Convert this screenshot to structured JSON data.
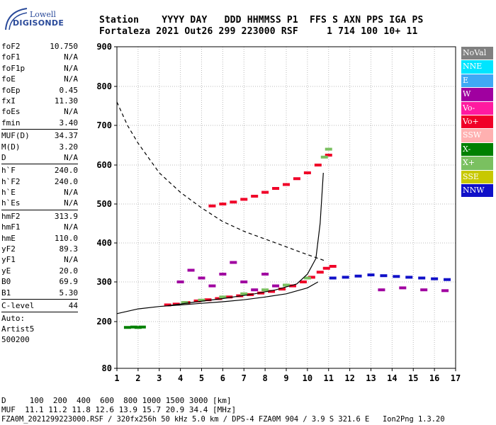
{
  "logo": {
    "line1": "Lowell",
    "line2": "DIGISONDE"
  },
  "header": {
    "row1": "Station    YYYY DAY   DDD HHMMSS P1  FFS S AXN PPS IGA PS",
    "row2": "Fortaleza 2021 Out26 299 223000 RSF     1 714 100 10+ 11"
  },
  "params": [
    [
      {
        "k": "foF2",
        "v": "10.750"
      },
      {
        "k": "foF1",
        "v": "N/A"
      },
      {
        "k": "foF1p",
        "v": "N/A"
      },
      {
        "k": "foE",
        "v": "N/A"
      },
      {
        "k": "foEp",
        "v": "0.45"
      },
      {
        "k": "fxI",
        "v": "11.30"
      },
      {
        "k": "foEs",
        "v": "N/A"
      },
      {
        "k": "fmin",
        "v": "3.40"
      }
    ],
    [
      {
        "k": "MUF(D)",
        "v": "34.37"
      },
      {
        "k": "M(D)",
        "v": "3.20"
      },
      {
        "k": "D",
        "v": "N/A"
      }
    ],
    [
      {
        "k": "h`F",
        "v": "240.0"
      },
      {
        "k": "h`F2",
        "v": "240.0"
      },
      {
        "k": "h`E",
        "v": "N/A"
      },
      {
        "k": "h`Es",
        "v": "N/A"
      }
    ],
    [
      {
        "k": "hmF2",
        "v": "313.9"
      },
      {
        "k": "hmF1",
        "v": "N/A"
      },
      {
        "k": "hmE",
        "v": "110.0"
      },
      {
        "k": "yF2",
        "v": "89.3"
      },
      {
        "k": "yF1",
        "v": "N/A"
      },
      {
        "k": "yE",
        "v": "20.0"
      },
      {
        "k": "B0",
        "v": "69.9"
      },
      {
        "k": "B1",
        "v": "5.30"
      }
    ],
    [
      {
        "k": "C-level",
        "v": "44"
      }
    ]
  ],
  "auto": [
    "Auto:",
    "Artist5",
    "500200"
  ],
  "legend": [
    {
      "label": "NoVal",
      "color": "#808080"
    },
    {
      "label": "NNE",
      "color": "#00e5ff"
    },
    {
      "label": "E",
      "color": "#3fa9f5"
    },
    {
      "label": "W",
      "color": "#a000a0"
    },
    {
      "label": "Vo-",
      "color": "#ff1aa0"
    },
    {
      "label": "Vo+",
      "color": "#f00028"
    },
    {
      "label": "SSW",
      "color": "#ffb0b0"
    },
    {
      "label": "X-",
      "color": "#008000"
    },
    {
      "label": "X+",
      "color": "#7ac060"
    },
    {
      "label": "SSE",
      "color": "#c8c800"
    },
    {
      "label": "NNW",
      "color": "#1010c8"
    }
  ],
  "bottom": {
    "line1": "D     100  200  400  600  800 1000 1500 3000 [km]",
    "line2": "MUF  11.1 11.2 11.8 12.6 13.9 15.7 20.9 34.4 [MHz]",
    "line3": "FZA0M_2021299223000.RSF / 320fx256h 50 kHz 5.0 km / DPS-4 FZA0M 904 / 3.9 S 321.6 E   Ion2Png 1.3.20"
  },
  "chart_data": {
    "type": "scatter",
    "title": "",
    "xlabel": "",
    "ylabel": "",
    "xlim": [
      1,
      17
    ],
    "ylim": [
      80,
      900
    ],
    "xticks": [
      1,
      2,
      3,
      4,
      5,
      6,
      7,
      8,
      9,
      10,
      11,
      12,
      13,
      14,
      15,
      16,
      17
    ],
    "yticks": [
      80,
      200,
      300,
      400,
      500,
      600,
      700,
      800,
      900
    ],
    "grid": true,
    "y_scale": "nonlinear (E-layer region 80-200 km compressed)",
    "series": [
      {
        "name": "Vo+ echoes (O-mode F trace)",
        "color": "#f00028",
        "x": [
          3.4,
          3.8,
          4.3,
          4.8,
          5.3,
          5.8,
          6.3,
          6.8,
          7.3,
          7.8,
          8.3,
          8.8,
          9.3,
          9.8,
          10.2,
          10.6,
          10.9,
          11.2
        ],
        "y": [
          242,
          244,
          248,
          252,
          255,
          258,
          262,
          265,
          268,
          272,
          276,
          282,
          290,
          300,
          312,
          325,
          335,
          340
        ]
      },
      {
        "name": "Vo+ echoes (second hop)",
        "color": "#f00028",
        "x": [
          5.5,
          6.0,
          6.5,
          7.0,
          7.5,
          8.0,
          8.5,
          9.0,
          9.5,
          10.0,
          10.5,
          11.0
        ],
        "y": [
          495,
          500,
          505,
          512,
          520,
          530,
          540,
          550,
          565,
          580,
          600,
          625
        ]
      },
      {
        "name": "X+ echoes",
        "color": "#7ac060",
        "x": [
          4.2,
          5.0,
          6.0,
          7.0,
          8.0,
          9.0,
          10.0,
          10.8,
          11.0
        ],
        "y": [
          248,
          254,
          262,
          270,
          280,
          292,
          310,
          620,
          640
        ]
      },
      {
        "name": "NNW spread echoes",
        "color": "#1010c8",
        "x": [
          11.2,
          11.8,
          12.4,
          13.0,
          13.6,
          14.2,
          14.8,
          15.4,
          16.0,
          16.6
        ],
        "y": [
          310,
          312,
          315,
          318,
          316,
          314,
          312,
          310,
          308,
          306
        ]
      },
      {
        "name": "W spread echoes",
        "color": "#a000a0",
        "x": [
          4.0,
          4.5,
          5.0,
          5.5,
          6.0,
          6.5,
          7.0,
          7.5,
          8.0,
          8.5,
          13.5,
          14.5,
          15.5,
          16.5
        ],
        "y": [
          300,
          330,
          310,
          290,
          320,
          350,
          300,
          280,
          320,
          290,
          280,
          285,
          280,
          278
        ]
      },
      {
        "name": "E-layer echoes",
        "color": "#008000",
        "x": [
          1.5,
          1.8,
          2.0,
          2.2
        ],
        "y": [
          185,
          186,
          185,
          186
        ]
      }
    ],
    "curves": [
      {
        "name": "dashed curve",
        "style": "dashed",
        "x": [
          1.0,
          1.5,
          2.0,
          3.0,
          4.0,
          5.0,
          6.0,
          7.0,
          8.0,
          9.0,
          10.0,
          10.8
        ],
        "y": [
          760,
          700,
          655,
          580,
          530,
          490,
          455,
          430,
          410,
          390,
          370,
          355
        ]
      },
      {
        "name": "solid curve (lower)",
        "style": "solid",
        "x": [
          1.0,
          2.0,
          3.0,
          4.0,
          5.0,
          6.0,
          7.0,
          8.0,
          9.0,
          10.0,
          10.5
        ],
        "y": [
          220,
          232,
          238,
          242,
          246,
          250,
          255,
          262,
          270,
          285,
          300
        ]
      },
      {
        "name": "solid curve (rising)",
        "style": "solid",
        "x": [
          3.4,
          4.5,
          6.0,
          7.5,
          8.5,
          9.5,
          10.0,
          10.4,
          10.6,
          10.75
        ],
        "y": [
          240,
          248,
          258,
          270,
          280,
          295,
          320,
          360,
          450,
          580
        ]
      }
    ]
  }
}
